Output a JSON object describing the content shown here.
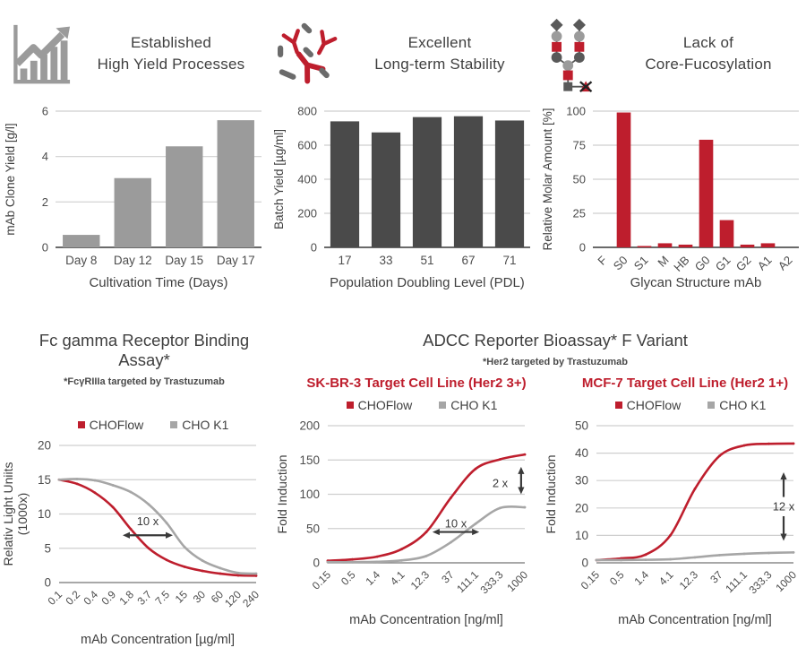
{
  "colors": {
    "accent_red": "#BE1E2D",
    "bar_light_gray": "#9B9B9B",
    "bar_dark_gray": "#4A4A4A",
    "line_gray": "#A6A6A6",
    "text_dark": "#3F3F3F",
    "grid_line": "#CFCFCF"
  },
  "top_panels": [
    {
      "icon": "growth-chart-icon",
      "title_line1": "Established",
      "title_line2": "High Yield Processes"
    },
    {
      "icon": "antibodies-icon",
      "title_line1": "Excellent",
      "title_line2": "Long-term Stability"
    },
    {
      "icon": "glycan-structure-icon",
      "title_line1": "Lack of",
      "title_line2": "Core-Fucosylation"
    }
  ],
  "bottom": {
    "left_title": "Fc gamma Receptor Binding Assay*",
    "left_subtitle": "*FcγRIIIa targeted by Trastuzumab",
    "right_title": "ADCC Reporter Bioassay* F Variant",
    "right_subtitle": "*Her2 targeted by Trastuzumab",
    "skbr3_title": "SK-BR-3 Target Cell Line (Her2 3+)",
    "mcf7_title": "MCF-7 Target Cell Line (Her2 1+)",
    "legend": {
      "series1": "CHOFlow",
      "series2": "CHO K1"
    }
  },
  "chart_data": [
    {
      "id": "clone-yield",
      "type": "bar",
      "categories": [
        "Day 8",
        "Day 12",
        "Day 15",
        "Day 17"
      ],
      "values": [
        0.55,
        3.05,
        4.45,
        5.6
      ],
      "xlabel": "Cultivation Time (Days)",
      "ylabel": "mAb Clone Yield [g/l]",
      "ylim": [
        0,
        6
      ],
      "yticks": [
        0,
        2,
        4,
        6
      ],
      "bar_color": "#9B9B9B",
      "bar_ratio": 0.72,
      "rotate_xlabels": false
    },
    {
      "id": "batch-yield",
      "type": "bar",
      "categories": [
        "17",
        "33",
        "51",
        "67",
        "71"
      ],
      "values": [
        740,
        675,
        765,
        770,
        745
      ],
      "xlabel": "Population Doubling Level (PDL)",
      "ylabel": "Batch Yield [µg/ml]",
      "ylim": [
        0,
        800
      ],
      "yticks": [
        0,
        200,
        400,
        600,
        800
      ],
      "bar_color": "#4A4A4A",
      "bar_ratio": 0.7,
      "rotate_xlabels": false
    },
    {
      "id": "glycan",
      "type": "bar",
      "categories": [
        "F",
        "S0",
        "S1",
        "M",
        "HB",
        "G0",
        "G1",
        "G2",
        "A1",
        "A2"
      ],
      "values": [
        0,
        99,
        1,
        3,
        2,
        79,
        20,
        2,
        3,
        0
      ],
      "xlabel": "Glycan Structure mAb",
      "ylabel": "Relative Molar Amount [%]",
      "ylim": [
        0,
        100
      ],
      "yticks": [
        0,
        25,
        50,
        75,
        100
      ],
      "bar_color": "#BE1E2D",
      "bar_ratio": 0.68,
      "rotate_xlabels": true
    },
    {
      "id": "fcgr-binding",
      "type": "line",
      "x_categories": [
        "0.1",
        "0.2",
        "0.4",
        "0.9",
        "1.8",
        "3.7",
        "7.5",
        "15",
        "30",
        "60",
        "120",
        "240"
      ],
      "series": [
        {
          "name": "CHOFlow",
          "color": "#BE1E2D",
          "values": [
            15,
            14.4,
            13.1,
            11,
            7.8,
            5,
            3.3,
            2.3,
            1.7,
            1.3,
            1.05,
            1
          ]
        },
        {
          "name": "CHO K1",
          "color": "#A6A6A6",
          "values": [
            15,
            15.1,
            14.9,
            14.2,
            13.2,
            11.4,
            8.7,
            5.2,
            3.2,
            2.1,
            1.4,
            1.3
          ]
        }
      ],
      "xlabel": "mAb Concentration [µg/ml]",
      "ylabel": [
        "Relativ Light Uniits",
        "(1000x)"
      ],
      "ylim": [
        0,
        20
      ],
      "yticks": [
        0,
        5,
        10,
        15,
        20
      ],
      "annotations": [
        {
          "kind": "arrow-h",
          "label": "10 x",
          "x1": 3.55,
          "x2": 6.35,
          "y": 6.9,
          "lx": 4.95,
          "ly": 8.9
        }
      ]
    },
    {
      "id": "skbr3-adcc",
      "type": "line",
      "x_categories": [
        "0.15",
        "0.5",
        "1.4",
        "4.1",
        "12.3",
        "37",
        "111.1",
        "333.3",
        "1000"
      ],
      "series": [
        {
          "name": "CHOFlow",
          "color": "#BE1E2D",
          "values": [
            3,
            5,
            9,
            20,
            45,
            95,
            137,
            151,
            158
          ]
        },
        {
          "name": "CHO K1",
          "color": "#A6A6A6",
          "values": [
            1,
            1,
            1.5,
            3.5,
            10,
            30,
            57,
            80,
            81
          ]
        }
      ],
      "xlabel": "mAb Concentration [ng/ml]",
      "ylabel": "Fold Induction",
      "ylim": [
        0,
        200
      ],
      "yticks": [
        0,
        50,
        100,
        150,
        200
      ],
      "annotations": [
        {
          "kind": "arrow-h",
          "label": "10 x",
          "x1": 4.25,
          "x2": 6.15,
          "y": 45,
          "lx": 5.2,
          "ly": 57
        },
        {
          "kind": "arrow-v",
          "label": "2 x",
          "x": 7.85,
          "y1": 100,
          "y2": 140,
          "lx": 7.0,
          "ly": 116
        }
      ]
    },
    {
      "id": "mcf7-adcc",
      "type": "line",
      "x_categories": [
        "0.15",
        "0.5",
        "1.4",
        "4.1",
        "12.3",
        "37",
        "111.1",
        "333.3",
        "1000"
      ],
      "series": [
        {
          "name": "CHOFlow",
          "color": "#BE1E2D",
          "values": [
            1,
            1.6,
            3,
            10,
            27,
            39,
            42.8,
            43.4,
            43.5
          ]
        },
        {
          "name": "CHO K1",
          "color": "#A6A6A6",
          "values": [
            1,
            1,
            1.1,
            1.3,
            2,
            2.8,
            3.3,
            3.6,
            3.8
          ]
        }
      ],
      "xlabel": "mAb Concentration [ng/ml]",
      "ylabel": "Fold Induction",
      "ylim": [
        0,
        50
      ],
      "yticks": [
        0,
        10,
        20,
        30,
        40,
        50
      ],
      "annotations": [
        {
          "kind": "arrow-v-split",
          "label": "12 x",
          "x": 7.6,
          "y1": 8,
          "y2": 33,
          "gap1": 17,
          "gap2": 24,
          "lx": 7.6,
          "ly": 20.5
        }
      ]
    }
  ]
}
